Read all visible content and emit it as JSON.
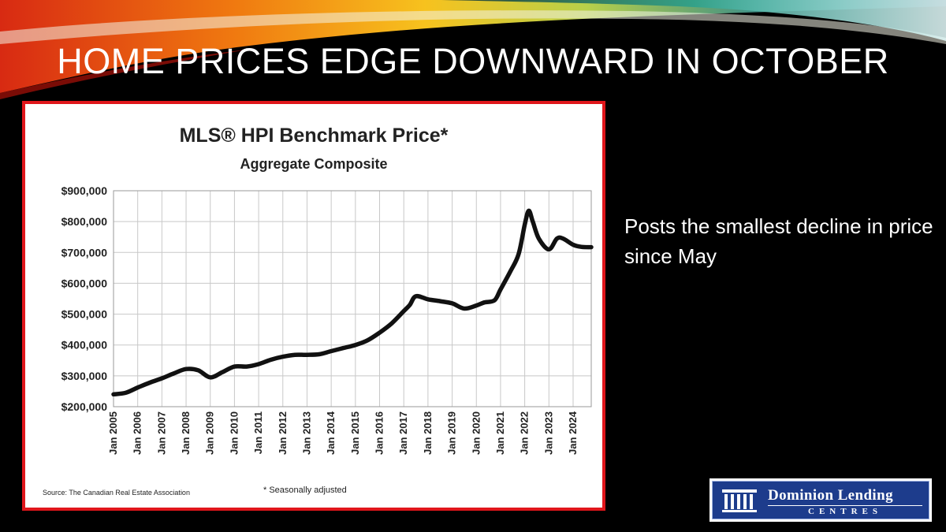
{
  "slide": {
    "title": "HOME PRICES EDGE DOWNWARD IN OCTOBER",
    "side_text": "Posts the smallest decline in price since May"
  },
  "logo": {
    "name": "Dominion Lending",
    "subtitle": "CENTRES",
    "icon": "building-columns-icon",
    "color": "#1d3c8c"
  },
  "chart_data": {
    "type": "line",
    "title": "MLS® HPI Benchmark Price*",
    "subtitle": "Aggregate Composite",
    "footnote": "* Seasonally adjusted",
    "source": "Source: The Canadian Real Estate Association",
    "xlabel": "",
    "ylabel": "",
    "ylim": [
      200000,
      900000
    ],
    "yticks": [
      200000,
      300000,
      400000,
      500000,
      600000,
      700000,
      800000,
      900000
    ],
    "ytick_labels": [
      "$200,000",
      "$300,000",
      "$400,000",
      "$500,000",
      "$600,000",
      "$700,000",
      "$800,000",
      "$900,000"
    ],
    "xlim": [
      "2005-01",
      "2024-10"
    ],
    "xtick_labels": [
      "Jan 2005",
      "Jan 2006",
      "Jan 2007",
      "Jan 2008",
      "Jan 2009",
      "Jan 2010",
      "Jan 2011",
      "Jan 2012",
      "Jan 2013",
      "Jan 2014",
      "Jan 2015",
      "Jan 2016",
      "Jan 2017",
      "Jan 2018",
      "Jan 2019",
      "Jan 2020",
      "Jan 2021",
      "Jan 2022",
      "Jan 2023",
      "Jan 2024"
    ],
    "grid": true,
    "line_color": "#111111",
    "series": [
      {
        "x": [
          "2005-01",
          "2005-07",
          "2006-01",
          "2006-07",
          "2007-01",
          "2007-07",
          "2008-01",
          "2008-07",
          "2009-01",
          "2009-07",
          "2010-01",
          "2010-07",
          "2011-01",
          "2011-07",
          "2012-01",
          "2012-07",
          "2013-01",
          "2013-07",
          "2014-01",
          "2014-07",
          "2015-01",
          "2015-07",
          "2016-01",
          "2016-07",
          "2017-01",
          "2017-04",
          "2017-07",
          "2018-01",
          "2018-07",
          "2019-01",
          "2019-07",
          "2020-01",
          "2020-05",
          "2020-10",
          "2021-01",
          "2021-06",
          "2021-10",
          "2022-01",
          "2022-03",
          "2022-05",
          "2022-08",
          "2023-01",
          "2023-05",
          "2023-08",
          "2024-01",
          "2024-05",
          "2024-10"
        ],
        "values": [
          240000,
          245000,
          262000,
          278000,
          292000,
          308000,
          322000,
          318000,
          295000,
          312000,
          330000,
          330000,
          338000,
          352000,
          362000,
          368000,
          368000,
          370000,
          380000,
          390000,
          400000,
          415000,
          440000,
          470000,
          510000,
          530000,
          558000,
          548000,
          542000,
          535000,
          518000,
          528000,
          538000,
          545000,
          580000,
          640000,
          695000,
          790000,
          835000,
          800000,
          745000,
          710000,
          745000,
          745000,
          725000,
          718000,
          717000
        ]
      }
    ]
  }
}
